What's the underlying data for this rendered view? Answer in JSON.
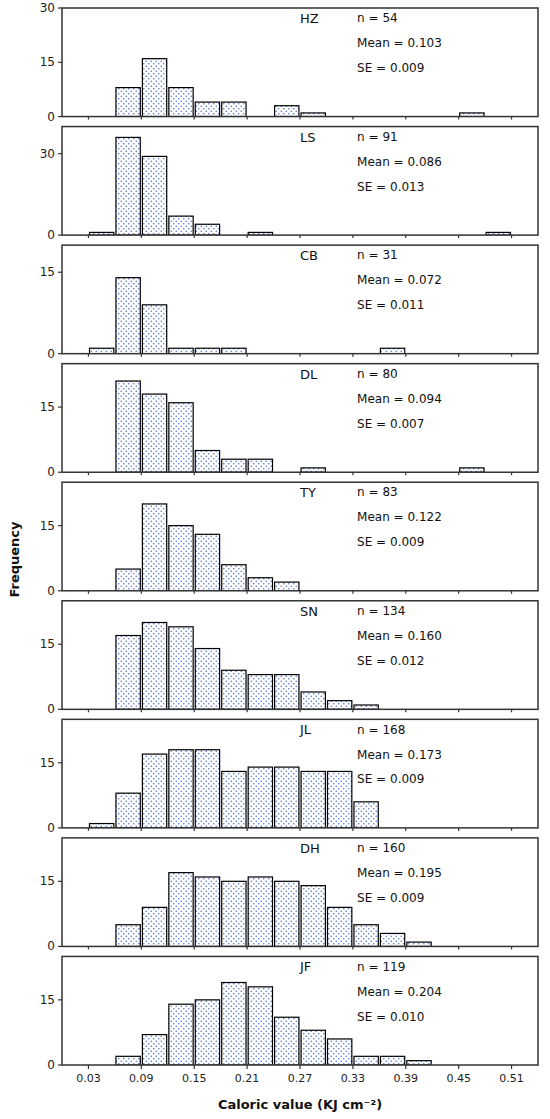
{
  "chart_data": [
    {
      "type": "histogram",
      "annotations": [
        "HZ",
        "n = 54",
        "Mean = 0.103",
        "SE = 0.009"
      ],
      "bins": [
        0.03,
        0.06,
        0.09,
        0.12,
        0.15,
        0.18,
        0.21,
        0.24,
        0.27,
        0.3,
        0.33,
        0.36,
        0.39,
        0.42,
        0.45,
        0.48,
        0.51
      ],
      "values": [
        0,
        8,
        16,
        8,
        4,
        4,
        0,
        3,
        1,
        0,
        0,
        0,
        0,
        0,
        1,
        0
      ],
      "color": "#5577cc",
      "xlim": [
        0.0,
        0.54
      ],
      "xticks": [
        0.03,
        0.09,
        0.15,
        0.21,
        0.27,
        0.33,
        0.39,
        0.45,
        0.51
      ],
      "ylim": [
        0,
        30
      ],
      "yticks": [
        0,
        15,
        30
      ],
      "tick_labels": "y"
    },
    {
      "type": "histogram",
      "annotations": [
        "LS",
        "n = 91",
        "Mean = 0.086",
        "SE = 0.013"
      ],
      "bins": [
        0.03,
        0.06,
        0.09,
        0.12,
        0.15,
        0.18,
        0.21,
        0.24,
        0.27,
        0.3,
        0.33,
        0.36,
        0.39,
        0.42,
        0.45,
        0.48,
        0.51
      ],
      "values": [
        1,
        36,
        29,
        7,
        4,
        0,
        1,
        0,
        0,
        0,
        0,
        0,
        0,
        0,
        0,
        1
      ],
      "color": "#5577cc",
      "xlim": [
        0.0,
        0.54
      ],
      "xticks": [
        0.03,
        0.09,
        0.15,
        0.21,
        0.27,
        0.33,
        0.39,
        0.45,
        0.51
      ],
      "ylim": [
        0,
        40
      ],
      "yticks": [
        0,
        30
      ],
      "tick_labels": "y"
    },
    {
      "type": "histogram",
      "annotations": [
        "CB",
        "n = 31",
        "Mean = 0.072",
        "SE = 0.011"
      ],
      "bins": [
        0.03,
        0.06,
        0.09,
        0.12,
        0.15,
        0.18,
        0.21,
        0.24,
        0.27,
        0.3,
        0.33,
        0.36,
        0.39,
        0.42,
        0.45,
        0.48,
        0.51
      ],
      "values": [
        1,
        14,
        9,
        1,
        1,
        1,
        0,
        0,
        0,
        0,
        0,
        1,
        0,
        0,
        0,
        0
      ],
      "color": "#5577cc",
      "xlim": [
        0.0,
        0.54
      ],
      "xticks": [
        0.03,
        0.09,
        0.15,
        0.21,
        0.27,
        0.33,
        0.39,
        0.45,
        0.51
      ],
      "ylim": [
        0,
        20
      ],
      "yticks": [
        0,
        15
      ],
      "tick_labels": "y"
    },
    {
      "type": "histogram",
      "annotations": [
        "DL",
        "n = 80",
        "Mean = 0.094",
        "SE = 0.007"
      ],
      "bins": [
        0.03,
        0.06,
        0.09,
        0.12,
        0.15,
        0.18,
        0.21,
        0.24,
        0.27,
        0.3,
        0.33,
        0.36,
        0.39,
        0.42,
        0.45,
        0.48,
        0.51
      ],
      "values": [
        0,
        21,
        18,
        16,
        5,
        3,
        3,
        0,
        1,
        0,
        0,
        0,
        0,
        0,
        1,
        0
      ],
      "color": "#5577cc",
      "xlim": [
        0.0,
        0.54
      ],
      "xticks": [
        0.03,
        0.09,
        0.15,
        0.21,
        0.27,
        0.33,
        0.39,
        0.45,
        0.51
      ],
      "ylim": [
        0,
        25
      ],
      "yticks": [
        0,
        15
      ],
      "tick_labels": "y"
    },
    {
      "type": "histogram",
      "annotations": [
        "TY",
        "n = 83",
        "Mean = 0.122",
        "SE = 0.009"
      ],
      "bins": [
        0.03,
        0.06,
        0.09,
        0.12,
        0.15,
        0.18,
        0.21,
        0.24,
        0.27,
        0.3,
        0.33,
        0.36,
        0.39,
        0.42,
        0.45,
        0.48,
        0.51
      ],
      "values": [
        0,
        5,
        20,
        15,
        13,
        6,
        3,
        2,
        0,
        0,
        0,
        0,
        0,
        0,
        0,
        0
      ],
      "color": "#5577cc",
      "xlim": [
        0.0,
        0.54
      ],
      "xticks": [
        0.03,
        0.09,
        0.15,
        0.21,
        0.27,
        0.33,
        0.39,
        0.45,
        0.51
      ],
      "ylim": [
        0,
        25
      ],
      "yticks": [
        0,
        15
      ],
      "tick_labels": "y",
      "ylabel": "Frequency"
    },
    {
      "type": "histogram",
      "annotations": [
        "SN",
        "n = 134",
        "Mean = 0.160",
        "SE = 0.012"
      ],
      "bins": [
        0.03,
        0.06,
        0.09,
        0.12,
        0.15,
        0.18,
        0.21,
        0.24,
        0.27,
        0.3,
        0.33,
        0.36,
        0.39,
        0.42,
        0.45,
        0.48,
        0.51
      ],
      "values": [
        0,
        17,
        20,
        19,
        14,
        9,
        8,
        8,
        4,
        2,
        1,
        0,
        0,
        0,
        0,
        0
      ],
      "color": "#5577cc",
      "xlim": [
        0.0,
        0.54
      ],
      "xticks": [
        0.03,
        0.09,
        0.15,
        0.21,
        0.27,
        0.33,
        0.39,
        0.45,
        0.51
      ],
      "ylim": [
        0,
        25
      ],
      "yticks": [
        0,
        15
      ],
      "tick_labels": "y"
    },
    {
      "type": "histogram",
      "annotations": [
        "JL",
        "n = 168",
        "Mean = 0.173",
        "SE = 0.009"
      ],
      "bins": [
        0.03,
        0.06,
        0.09,
        0.12,
        0.15,
        0.18,
        0.21,
        0.24,
        0.27,
        0.3,
        0.33,
        0.36,
        0.39,
        0.42,
        0.45,
        0.48,
        0.51
      ],
      "values": [
        1,
        8,
        17,
        18,
        18,
        13,
        14,
        14,
        13,
        13,
        6,
        0,
        0,
        0,
        0,
        0
      ],
      "color": "#5577cc",
      "xlim": [
        0.0,
        0.54
      ],
      "xticks": [
        0.03,
        0.09,
        0.15,
        0.21,
        0.27,
        0.33,
        0.39,
        0.45,
        0.51
      ],
      "ylim": [
        0,
        25
      ],
      "yticks": [
        0,
        15
      ],
      "tick_labels": "y"
    },
    {
      "type": "histogram",
      "annotations": [
        "DH",
        "n = 160",
        "Mean = 0.195",
        "SE = 0.009"
      ],
      "bins": [
        0.03,
        0.06,
        0.09,
        0.12,
        0.15,
        0.18,
        0.21,
        0.24,
        0.27,
        0.3,
        0.33,
        0.36,
        0.39,
        0.42,
        0.45,
        0.48,
        0.51
      ],
      "values": [
        0,
        5,
        9,
        17,
        16,
        15,
        16,
        15,
        14,
        9,
        5,
        3,
        1,
        0,
        0,
        0
      ],
      "color": "#5577cc",
      "xlim": [
        0.0,
        0.54
      ],
      "xticks": [
        0.03,
        0.09,
        0.15,
        0.21,
        0.27,
        0.33,
        0.39,
        0.45,
        0.51
      ],
      "ylim": [
        0,
        25
      ],
      "yticks": [
        0,
        15
      ],
      "tick_labels": "y"
    },
    {
      "type": "histogram",
      "annotations": [
        "JF",
        "n = 119",
        "Mean = 0.204",
        "SE = 0.010"
      ],
      "bins": [
        0.03,
        0.06,
        0.09,
        0.12,
        0.15,
        0.18,
        0.21,
        0.24,
        0.27,
        0.3,
        0.33,
        0.36,
        0.39,
        0.42,
        0.45,
        0.48,
        0.51
      ],
      "values": [
        0,
        2,
        7,
        14,
        15,
        19,
        18,
        11,
        8,
        6,
        2,
        2,
        1,
        0,
        0,
        0
      ],
      "color": "#5577cc",
      "xlim": [
        0.0,
        0.54
      ],
      "xticks": [
        0.03,
        0.09,
        0.15,
        0.21,
        0.27,
        0.33,
        0.39,
        0.45,
        0.51
      ],
      "ylim": [
        0,
        25
      ],
      "yticks": [
        0,
        15
      ],
      "xlabel": "Caloric value (KJ cm⁻²)"
    }
  ]
}
